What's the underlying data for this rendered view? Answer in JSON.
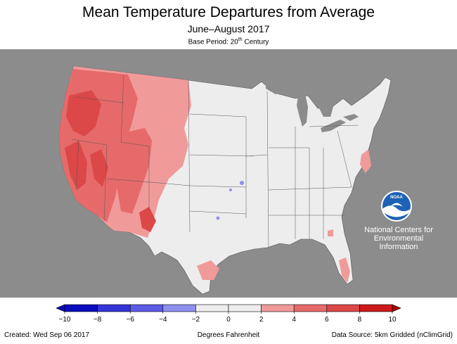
{
  "header": {
    "title": "Mean Temperature Departures from Average",
    "subtitle": "June–August 2017",
    "base_period_prefix": "Base Period: 20",
    "base_period_sup": "th",
    "base_period_suffix": " Century"
  },
  "logo": {
    "icon": "noaa-logo",
    "wordmark": "NOAA",
    "org_line1": "National Centers for",
    "org_line2": "Environmental",
    "org_line3": "Information"
  },
  "legend": {
    "ticks": [
      "−10",
      "−8",
      "−6",
      "−4",
      "−2",
      "0",
      "2",
      "4",
      "6",
      "8",
      "10"
    ],
    "bin_colors": [
      "#0b0bbf",
      "#3434d6",
      "#5b5be3",
      "#8f8fef",
      "#ededed",
      "#ededed",
      "#f19a9a",
      "#e66a6a",
      "#dc4848",
      "#cc1a1a"
    ],
    "low_cap_color": "#0b0bbf",
    "high_cap_color": "#aa0000",
    "units": "Degrees Fahrenheit"
  },
  "footer": {
    "created": "Created: Wed Sep 06 2017",
    "source": "Data Source: 5km Gridded (nClimGrid)"
  },
  "colors": {
    "background_land": "#8c8c8c",
    "water": "#8c8c8c",
    "conus_neutral": "#ededed",
    "warm_light": "#f19a9a",
    "warm_mid": "#e66a6a",
    "warm_dark": "#dc4848",
    "cool_light": "#8f8fef"
  }
}
